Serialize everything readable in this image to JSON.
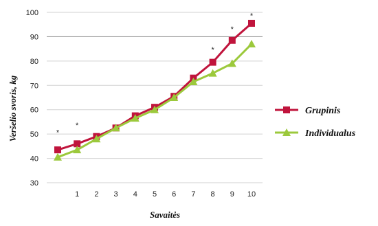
{
  "chart_data": {
    "type": "line",
    "xlabel": "Savaitės",
    "ylabel": "Veršelio svoris, kg",
    "ylim": [
      30,
      100
    ],
    "yticks": [
      30,
      40,
      50,
      60,
      70,
      80,
      90,
      100
    ],
    "x": [
      0,
      1,
      2,
      3,
      4,
      5,
      6,
      7,
      8,
      9,
      10
    ],
    "x_tick_labels": [
      "",
      "1",
      "2",
      "3",
      "4",
      "5",
      "6",
      "7",
      "8",
      "9",
      "10"
    ],
    "grid": "horizontal",
    "legend_position": "right",
    "series": [
      {
        "name": "Grupinis",
        "color": "#c0143c",
        "marker": "square",
        "values": [
          43.5,
          46,
          49,
          52.5,
          57.5,
          61,
          65.5,
          73,
          79.5,
          88.5,
          95.5
        ]
      },
      {
        "name": "Individualus",
        "color": "#9cc93c",
        "marker": "triangle",
        "values": [
          40.5,
          43.5,
          48,
          52.5,
          56.5,
          60,
          65,
          71.5,
          75,
          79,
          87
        ]
      }
    ],
    "significance_marks": [
      {
        "x": 0,
        "y": 51,
        "label": "*"
      },
      {
        "x": 1,
        "y": 54,
        "label": "*"
      },
      {
        "x": 8,
        "y": 85,
        "label": "*"
      },
      {
        "x": 9,
        "y": 93.5,
        "label": "*"
      },
      {
        "x": 10,
        "y": 99,
        "label": "*"
      }
    ]
  }
}
